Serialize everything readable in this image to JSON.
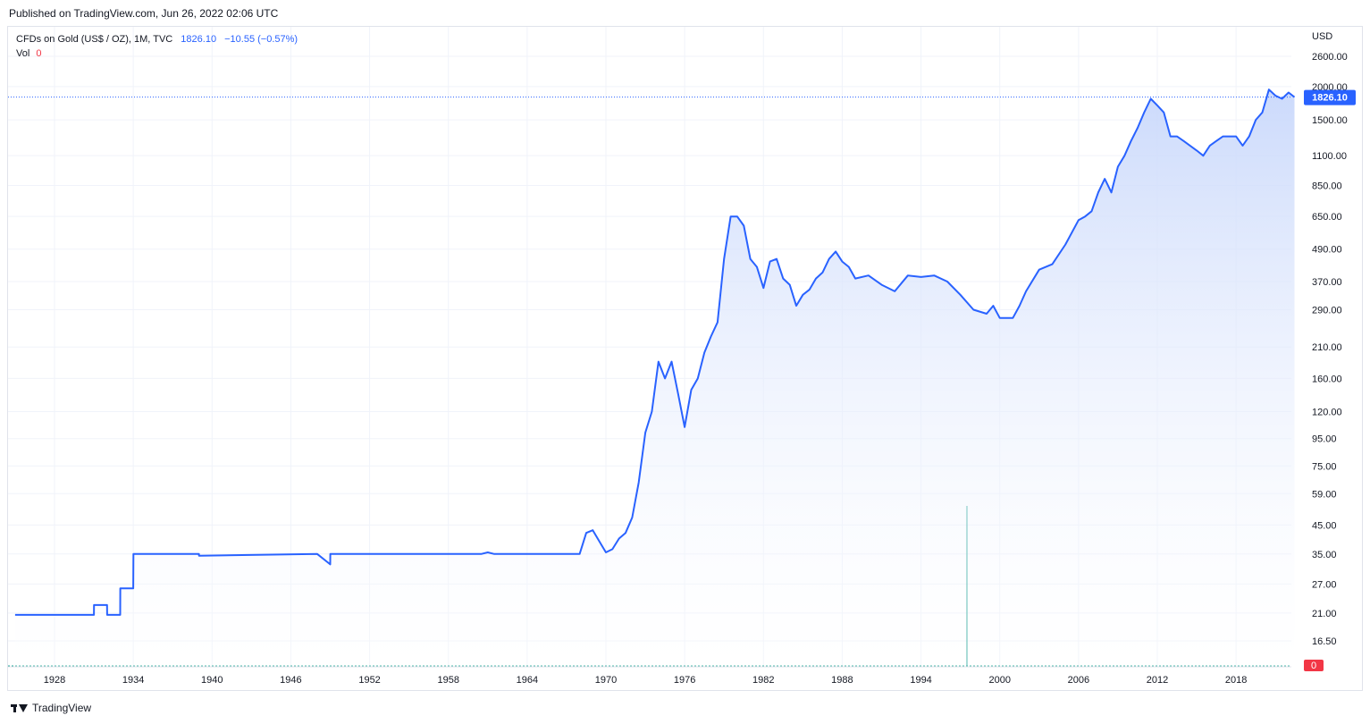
{
  "header": {
    "published": "Published on TradingView.com, Jun 26, 2022 02:06 UTC"
  },
  "legend": {
    "symbol": "CFDs on Gold (US$ / OZ), 1M, TVC",
    "last": "1826.10",
    "change": "−10.55 (−0.57%)",
    "vol_label": "Vol",
    "vol_value": "0"
  },
  "footer": {
    "brand": "TradingView"
  },
  "colors": {
    "line": "#2962ff",
    "area_top": "#c9d8fb",
    "grid": "#f0f3fa",
    "volume": "#26a69a",
    "vol_badge": "#f23645"
  },
  "chart_data": {
    "type": "area",
    "title": "CFDs on Gold (US$ / OZ), 1M, TVC",
    "ylabel": "USD",
    "scale": "log",
    "y_ticks": [
      "2600.00",
      "2000.00",
      "1500.00",
      "1100.00",
      "850.00",
      "650.00",
      "490.00",
      "370.00",
      "290.00",
      "210.00",
      "160.00",
      "120.00",
      "95.00",
      "75.00",
      "59.00",
      "45.00",
      "35.00",
      "27.00",
      "21.00",
      "16.50"
    ],
    "x_ticks": [
      "1928",
      "1934",
      "1940",
      "1946",
      "1952",
      "1958",
      "1964",
      "1970",
      "1976",
      "1982",
      "1988",
      "1994",
      "2000",
      "2006",
      "2012",
      "2018"
    ],
    "last_price_label": "1826.10",
    "volume_label": "0",
    "series": [
      {
        "x": [
          1925.0,
          1931.0,
          1931.01,
          1932.0,
          1932.01,
          1933.0,
          1933.01,
          1934.0,
          1934.01,
          1939.0,
          1939.01,
          1948.0,
          1948.01,
          1949.0,
          1949.01,
          1960.5,
          1961.0,
          1961.5,
          1968.0,
          1968.5,
          1969.0,
          1969.5,
          1970.0,
          1970.5,
          1971.0,
          1971.5,
          1972.0,
          1972.5,
          1973.0,
          1973.5,
          1974.0,
          1974.5,
          1975.0,
          1975.5,
          1976.0,
          1976.5,
          1977.0,
          1977.5,
          1978.0,
          1978.5,
          1979.0,
          1979.5,
          1980.0,
          1980.5,
          1981.0,
          1981.5,
          1982.0,
          1982.5,
          1983.0,
          1983.5,
          1984.0,
          1984.5,
          1985.0,
          1985.5,
          1986.0,
          1986.5,
          1987.0,
          1987.5,
          1988.0,
          1988.5,
          1989.0,
          1990.0,
          1991.0,
          1992.0,
          1993.0,
          1994.0,
          1995.0,
          1996.0,
          1997.0,
          1998.0,
          1999.0,
          1999.5,
          2000.0,
          2001.0,
          2001.5,
          2002.0,
          2003.0,
          2004.0,
          2005.0,
          2006.0,
          2006.5,
          2007.0,
          2007.5,
          2008.0,
          2008.5,
          2009.0,
          2009.5,
          2010.0,
          2010.5,
          2011.0,
          2011.5,
          2012.0,
          2012.5,
          2013.0,
          2013.5,
          2014.0,
          2015.0,
          2015.5,
          2016.0,
          2016.5,
          2017.0,
          2018.0,
          2018.5,
          2019.0,
          2019.5,
          2020.0,
          2020.5,
          2021.0,
          2021.5,
          2022.0,
          2022.45
        ],
        "y": [
          20.67,
          20.67,
          22.5,
          22.5,
          20.67,
          20.67,
          26,
          26,
          35,
          35,
          34.5,
          35,
          35,
          32,
          35,
          35,
          35.5,
          35,
          35,
          42,
          43,
          39,
          35.5,
          36.5,
          40,
          42,
          48,
          65,
          100,
          120,
          185,
          160,
          185,
          140,
          105,
          145,
          160,
          200,
          230,
          260,
          450,
          650,
          650,
          600,
          450,
          420,
          350,
          440,
          450,
          380,
          360,
          300,
          330,
          345,
          380,
          400,
          450,
          480,
          440,
          420,
          380,
          390,
          360,
          340,
          390,
          385,
          390,
          370,
          330,
          290,
          280,
          300,
          270,
          270,
          300,
          340,
          410,
          430,
          510,
          630,
          650,
          680,
          800,
          900,
          800,
          1000,
          1100,
          1250,
          1400,
          1600,
          1800,
          1700,
          1600,
          1300,
          1300,
          1250,
          1150,
          1100,
          1200,
          1250,
          1300,
          1300,
          1200,
          1300,
          1500,
          1600,
          1950,
          1850,
          1800,
          1900,
          1826.1
        ]
      }
    ],
    "volume_spike": {
      "x": 1997.5
    }
  }
}
